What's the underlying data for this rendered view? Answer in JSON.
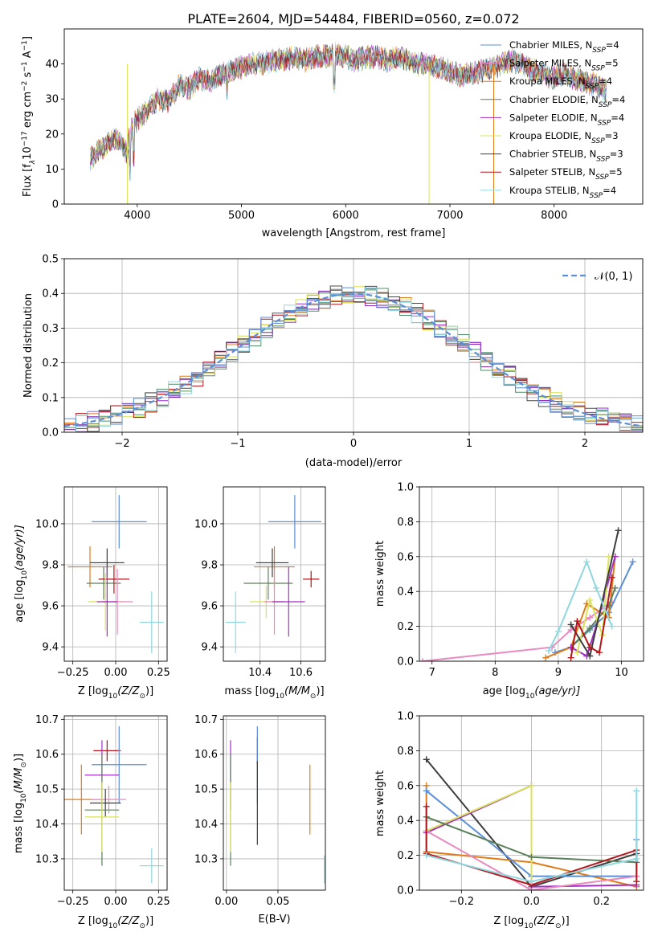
{
  "title": "PLATE=2604, MJD=54484, FIBERID=0560, z=0.072",
  "colors": {
    "grid": "#b0b0b0",
    "models": [
      "#4e8f6a",
      "#7a1fa2",
      "#e07b1a",
      "#4e8f6a",
      "#9b2bd0",
      "#d8e04a",
      "#4a4a4a",
      "#b3171c",
      "#8fd8e0"
    ]
  },
  "legend_spectrum": [
    {
      "text": "Chabrier MILES, N",
      "sub": "SSP",
      "tail": "=4",
      "color": "#5b8fd6"
    },
    {
      "text": "Salpeter MILES, N",
      "sub": "SSP",
      "tail": "=5",
      "color": "#e889c0"
    },
    {
      "text": "Kroupa MILES, N",
      "sub": "SSP",
      "tail": "=4",
      "color": "#e07b1a"
    },
    {
      "text": "Chabrier ELODIE, N",
      "sub": "SSP",
      "tail": "=4",
      "color": "#5a7f5a"
    },
    {
      "text": "Salpeter ELODIE, N",
      "sub": "SSP",
      "tail": "=4",
      "color": "#a22fc4"
    },
    {
      "text": "Kroupa ELODIE, N",
      "sub": "SSP",
      "tail": "=3",
      "color": "#dbe35a"
    },
    {
      "text": "Chabrier STELIB, N",
      "sub": "SSP",
      "tail": "=3",
      "color": "#3d3d3d"
    },
    {
      "text": "Salpeter STELIB, N",
      "sub": "SSP",
      "tail": "=5",
      "color": "#b3171c"
    },
    {
      "text": "Kroupa STELIB, N",
      "sub": "SSP",
      "tail": "=4",
      "color": "#8fd8e0"
    }
  ],
  "legend_hist": {
    "label": "𝒩(0, 1)",
    "color": "#5b8fd6"
  },
  "chart_data": [
    {
      "type": "line",
      "id": "spectrum",
      "xlabel": "wavelength [Angstrom, rest frame]",
      "ylabel_main": "Flux [f",
      "ylabel_sub": "λ",
      "ylabel_rest": "10",
      "ylabel_sup": "−17",
      "ylabel_unit": " erg cm",
      "ylabel_sup2": "−2",
      "ylabel_s": " s",
      "ylabel_sup3": "−1",
      "ylabel_A": " A",
      "ylabel_sup4": "−1",
      "ylabel_end": "]",
      "xlim": [
        3300,
        8850
      ],
      "ylim": [
        0,
        50
      ],
      "xticks": [
        4000,
        5000,
        6000,
        7000,
        8000
      ],
      "yticks": [
        0,
        10,
        20,
        30,
        40
      ],
      "x": [
        3550,
        3700,
        3800,
        3900,
        3950,
        4000,
        4100,
        4200,
        4300,
        4400,
        4500,
        4600,
        4700,
        4800,
        4900,
        5000,
        5100,
        5200,
        5300,
        5400,
        5500,
        5600,
        5700,
        5800,
        5900,
        6000,
        6100,
        6200,
        6300,
        6400,
        6500,
        6600,
        6700,
        6800,
        6900,
        7000,
        7100,
        7200,
        7300,
        7400,
        7500,
        7600,
        7700,
        7800,
        7900,
        8000,
        8100,
        8200,
        8300,
        8400,
        8500
      ],
      "y": [
        13,
        17,
        19,
        15,
        22,
        24,
        27,
        30,
        29,
        34,
        33,
        36,
        35,
        37,
        38,
        39,
        40,
        40,
        41,
        41,
        42,
        41,
        42,
        42,
        43,
        42,
        41,
        42,
        42,
        41,
        42,
        41,
        40,
        40,
        39,
        38,
        37,
        37,
        38,
        39,
        40,
        41,
        40,
        38,
        37,
        36,
        37,
        36,
        35,
        34,
        32
      ]
    },
    {
      "type": "bar",
      "id": "residual-hist",
      "xlabel": "(data-model)/error",
      "ylabel": "Normed distribution",
      "xlim": [
        -2.5,
        2.5
      ],
      "ylim": [
        0,
        0.5
      ],
      "xticks": [
        -2,
        -1,
        0,
        1,
        2
      ],
      "xtick_labels": [
        "−2",
        "−1",
        "0",
        "1",
        "2"
      ],
      "yticks": [
        0,
        0.1,
        0.2,
        0.3,
        0.4,
        0.5
      ],
      "ytick_labels": [
        "0.0",
        "0.1",
        "0.2",
        "0.3",
        "0.4",
        "0.5"
      ],
      "bin_edges_start": -2.5,
      "bin_width": 0.1,
      "gaussian": {
        "mu": 0,
        "sigma": 1
      }
    },
    {
      "type": "scatter",
      "id": "age-vs-Z",
      "xlabel": "Z [log",
      "xlabel_sub": "10",
      "xlabel_rest": "(Z/Z",
      "xlabel_sub2": "⊙",
      "xlabel_end": ")]",
      "ylabel": "age  [log",
      "ylabel_sub": "10",
      "ylabel_end": "(age/yr)]",
      "xlim": [
        -0.3,
        0.3
      ],
      "ylim": [
        9.33,
        10.18
      ],
      "xticks": [
        -0.25,
        0,
        0.25
      ],
      "xtick_labels": [
        "−0.25",
        "0.00",
        "0.25"
      ],
      "yticks": [
        9.4,
        9.6,
        9.8,
        10.0
      ],
      "ytick_labels": [
        "9.4",
        "9.6",
        "9.8",
        "10.0"
      ],
      "points": [
        {
          "x": 0.02,
          "xerr": 0.16,
          "y": 10.01,
          "yerr": 0.13,
          "color": "#5b8fd6"
        },
        {
          "x": -0.15,
          "xerr": 0.13,
          "y": 9.79,
          "yerr": 0.1,
          "color": "#e07b1a"
        },
        {
          "x": -0.05,
          "xerr": 0.1,
          "y": 9.81,
          "yerr": 0.07,
          "color": "#3d3d3d"
        },
        {
          "x": -0.07,
          "xerr": 0.1,
          "y": 9.71,
          "yerr": 0.08,
          "color": "#5a7f5a"
        },
        {
          "x": -0.01,
          "xerr": 0.09,
          "y": 9.73,
          "yerr": 0.07,
          "color": "#b3171c"
        },
        {
          "x": -0.06,
          "xerr": 0.1,
          "y": 9.62,
          "yerr": 0.14,
          "color": "#dbe35a"
        },
        {
          "x": 0.01,
          "xerr": 0.09,
          "y": 9.62,
          "yerr": 0.16,
          "color": "#e889c0"
        },
        {
          "x": -0.05,
          "xerr": 0.06,
          "y": 9.62,
          "yerr": 0.17,
          "color": "#a22fc4"
        },
        {
          "x": 0.21,
          "xerr": 0.07,
          "y": 9.52,
          "yerr": 0.15,
          "color": "#8fd8e0"
        }
      ]
    },
    {
      "type": "scatter",
      "id": "age-vs-mass",
      "xlabel": "mass [log",
      "xlabel_sub": "10",
      "xlabel_rest": "(M/M",
      "xlabel_sub2": "⊙",
      "xlabel_end": ")]",
      "xlim": [
        10.22,
        10.72
      ],
      "ylim": [
        9.33,
        10.18
      ],
      "xticks": [
        10.4,
        10.6
      ],
      "xtick_labels": [
        "10.4",
        "10.6"
      ],
      "yticks": [
        9.4,
        9.6,
        9.8,
        10.0
      ],
      "ytick_labels": [
        "9.4",
        "9.6",
        "9.8",
        "10.0"
      ],
      "points": [
        {
          "x": 10.57,
          "xerr": 0.13,
          "y": 10.01,
          "yerr": 0.13,
          "color": "#5b8fd6"
        },
        {
          "x": 10.47,
          "xerr": 0.1,
          "y": 9.79,
          "yerr": 0.1,
          "color": "#e07b1a"
        },
        {
          "x": 10.46,
          "xerr": 0.08,
          "y": 9.81,
          "yerr": 0.07,
          "color": "#3d3d3d"
        },
        {
          "x": 10.44,
          "xerr": 0.12,
          "y": 9.71,
          "yerr": 0.08,
          "color": "#5a7f5a"
        },
        {
          "x": 10.65,
          "xerr": 0.04,
          "y": 9.73,
          "yerr": 0.04,
          "color": "#b3171c"
        },
        {
          "x": 10.43,
          "xerr": 0.08,
          "y": 9.62,
          "yerr": 0.08,
          "color": "#dbe35a"
        },
        {
          "x": 10.47,
          "xerr": 0.05,
          "y": 9.62,
          "yerr": 0.16,
          "color": "#e889c0"
        },
        {
          "x": 10.54,
          "xerr": 0.08,
          "y": 9.62,
          "yerr": 0.17,
          "color": "#a22fc4"
        },
        {
          "x": 10.28,
          "xerr": 0.05,
          "y": 9.52,
          "yerr": 0.15,
          "color": "#8fd8e0"
        }
      ]
    },
    {
      "type": "line",
      "id": "massweight-vs-age",
      "xlabel": "age  [log",
      "xlabel_sub": "10",
      "xlabel_end": "(age/yr)]",
      "ylabel": "mass weight",
      "xlim": [
        6.8,
        10.35
      ],
      "ylim": [
        0,
        1
      ],
      "xticks": [
        7,
        8,
        9,
        10
      ],
      "xtick_labels": [
        "7",
        "8",
        "9",
        "10"
      ],
      "yticks": [
        0,
        0.2,
        0.4,
        0.6,
        0.8,
        1.0
      ],
      "ytick_labels": [
        "0.0",
        "0.2",
        "0.4",
        "0.6",
        "0.8",
        "1.0"
      ],
      "series": [
        {
          "color": "#e889c0",
          "x": [
            6.85,
            8.9,
            9.2,
            9.5,
            9.85
          ],
          "y": [
            0.0,
            0.08,
            0.18,
            0.25,
            0.34
          ]
        },
        {
          "color": "#5b8fd6",
          "x": [
            8.95,
            9.2,
            9.5,
            9.8,
            10.18
          ],
          "y": [
            0.05,
            0.08,
            0.18,
            0.28,
            0.57
          ]
        },
        {
          "color": "#e07b1a",
          "x": [
            8.8,
            9.2,
            9.45,
            9.8,
            9.9
          ],
          "y": [
            0.02,
            0.08,
            0.33,
            0.25,
            0.6
          ]
        },
        {
          "color": "#5a7f5a",
          "x": [
            9.2,
            9.5,
            9.8,
            9.9
          ],
          "y": [
            0.08,
            0.19,
            0.32,
            0.42
          ]
        },
        {
          "color": "#a22fc4",
          "x": [
            9.2,
            9.45,
            9.6,
            9.9
          ],
          "y": [
            0.08,
            0.03,
            0.2,
            0.6
          ]
        },
        {
          "color": "#dbe35a",
          "x": [
            9.3,
            9.5,
            9.7,
            9.8
          ],
          "y": [
            0.05,
            0.35,
            0.15,
            0.6
          ]
        },
        {
          "color": "#3d3d3d",
          "x": [
            9.2,
            9.5,
            9.95
          ],
          "y": [
            0.21,
            0.03,
            0.75
          ]
        },
        {
          "color": "#b3171c",
          "x": [
            9.2,
            9.3,
            9.5,
            9.65,
            9.85
          ],
          "y": [
            0.02,
            0.23,
            0.08,
            0.05,
            0.48
          ]
        },
        {
          "color": "#8fd8e0",
          "x": [
            8.85,
            9.0,
            9.45,
            9.6,
            9.85
          ],
          "y": [
            0.06,
            0.17,
            0.57,
            0.42,
            0.2
          ]
        }
      ]
    },
    {
      "type": "scatter",
      "id": "mass-vs-Z",
      "xlabel": "Z [log",
      "xlabel_sub": "10",
      "xlabel_rest": "(Z/Z",
      "xlabel_sub2": "⊙",
      "xlabel_end": ")]",
      "ylabel": "mass [log",
      "ylabel_sub": "10",
      "ylabel_end": "(M/M",
      "ylabel_sub2": "⊙",
      "ylabel_end2": ")]",
      "xlim": [
        -0.3,
        0.3
      ],
      "ylim": [
        10.21,
        10.71
      ],
      "xticks": [
        -0.25,
        0,
        0.25
      ],
      "xtick_labels": [
        "−0.25",
        "0.00",
        "0.25"
      ],
      "yticks": [
        10.3,
        10.4,
        10.5,
        10.6,
        10.7
      ],
      "ytick_labels": [
        "10.3",
        "10.4",
        "10.5",
        "10.6",
        "10.7"
      ],
      "points": [
        {
          "x": -0.05,
          "xerr": 0.08,
          "y": 10.61,
          "yerr": 0.03,
          "color": "#b3171c"
        },
        {
          "x": 0.02,
          "xerr": 0.16,
          "y": 10.57,
          "yerr": 0.11,
          "color": "#5b8fd6"
        },
        {
          "x": -0.08,
          "xerr": 0.1,
          "y": 10.54,
          "yerr": 0.1,
          "color": "#a22fc4"
        },
        {
          "x": -0.2,
          "xerr": 0.13,
          "y": 10.47,
          "yerr": 0.1,
          "color": "#e07b1a"
        },
        {
          "x": -0.04,
          "xerr": 0.1,
          "y": 10.47,
          "yerr": 0.04,
          "color": "#e889c0"
        },
        {
          "x": -0.06,
          "xerr": 0.09,
          "y": 10.46,
          "yerr": 0.04,
          "color": "#3d3d3d"
        },
        {
          "x": -0.08,
          "xerr": 0.1,
          "y": 10.44,
          "yerr": 0.16,
          "color": "#5a7f5a"
        },
        {
          "x": -0.08,
          "xerr": 0.1,
          "y": 10.42,
          "yerr": 0.1,
          "color": "#dbe35a"
        },
        {
          "x": 0.21,
          "xerr": 0.07,
          "y": 10.28,
          "yerr": 0.05,
          "color": "#8fd8e0"
        }
      ]
    },
    {
      "type": "scatter",
      "id": "mass-vs-ebv",
      "xlabel": "E(B-V)",
      "xlim": [
        -0.003,
        0.096
      ],
      "ylim": [
        10.21,
        10.71
      ],
      "xticks": [
        0,
        0.05
      ],
      "xtick_labels": [
        "0.00",
        "0.05"
      ],
      "yticks": [
        10.3,
        10.4,
        10.5,
        10.6,
        10.7
      ],
      "ytick_labels": [
        "10.3",
        "10.4",
        "10.5",
        "10.6",
        "10.7"
      ],
      "points": [
        {
          "x": 0.03,
          "y": 10.61,
          "yerr": 0.04,
          "color": "#b3171c"
        },
        {
          "x": 0.03,
          "y": 10.57,
          "yerr": 0.11,
          "color": "#5b8fd6"
        },
        {
          "x": 0.004,
          "y": 10.54,
          "yerr": 0.1,
          "color": "#a22fc4"
        },
        {
          "x": 0.081,
          "y": 10.47,
          "yerr": 0.1,
          "color": "#e07b1a"
        },
        {
          "x": 0.03,
          "y": 10.46,
          "yerr": 0.12,
          "color": "#3d3d3d"
        },
        {
          "x": 0.004,
          "y": 10.44,
          "yerr": 0.16,
          "color": "#5a7f5a"
        },
        {
          "x": 0.004,
          "y": 10.42,
          "yerr": 0.1,
          "color": "#dbe35a"
        },
        {
          "x": 0.095,
          "y": 10.27,
          "yerr": 0.04,
          "color": "#8fd8e0"
        }
      ]
    },
    {
      "type": "line",
      "id": "massweight-vs-Z",
      "xlabel": "Z [log",
      "xlabel_sub": "10",
      "xlabel_rest": "(Z/Z",
      "xlabel_sub2": "⊙",
      "xlabel_end": ")]",
      "ylabel": "mass weight",
      "xlim": [
        -0.32,
        0.32
      ],
      "ylim": [
        0,
        1
      ],
      "xticks": [
        -0.2,
        0,
        0.2
      ],
      "xtick_labels": [
        "−0.2",
        "0.0",
        "0.2"
      ],
      "yticks": [
        0,
        0.2,
        0.4,
        0.6,
        0.8,
        1.0
      ],
      "ytick_labels": [
        "0.0",
        "0.2",
        "0.4",
        "0.6",
        "0.8",
        "1.0"
      ],
      "series": [
        {
          "color": "#3d3d3d",
          "x": [
            -0.3,
            0.0,
            0.3
          ],
          "y": [
            0.75,
            0.02,
            0.21
          ]
        },
        {
          "color": "#e07b1a",
          "x": [
            -0.3,
            -0.3,
            0.0,
            0.3
          ],
          "y": [
            0.6,
            0.22,
            0.16,
            0.02
          ]
        },
        {
          "color": "#5b8fd6",
          "x": [
            -0.3,
            0.0,
            0.3,
            0.3
          ],
          "y": [
            0.57,
            0.08,
            0.08,
            0.29
          ]
        },
        {
          "color": "#a22fc4",
          "x": [
            -0.3,
            0.0,
            0.0,
            0.3
          ],
          "y": [
            0.33,
            0.6,
            0.02,
            0.03
          ]
        },
        {
          "color": "#dbe35a",
          "x": [
            -0.3,
            0.0,
            0.0
          ],
          "y": [
            0.34,
            0.6,
            0.05
          ]
        },
        {
          "color": "#5a7f5a",
          "x": [
            -0.3,
            0.0,
            0.3
          ],
          "y": [
            0.42,
            0.19,
            0.16
          ]
        },
        {
          "color": "#e889c0",
          "x": [
            -0.3,
            0.0,
            0.3
          ],
          "y": [
            0.34,
            0.0,
            0.08
          ]
        },
        {
          "color": "#b3171c",
          "x": [
            -0.3,
            -0.3,
            0.0,
            0.3,
            0.3
          ],
          "y": [
            0.48,
            0.21,
            0.03,
            0.23,
            0.05
          ]
        },
        {
          "color": "#8fd8e0",
          "x": [
            -0.3,
            0.0,
            0.3,
            0.3
          ],
          "y": [
            0.2,
            0.05,
            0.18,
            0.57
          ]
        }
      ]
    }
  ]
}
